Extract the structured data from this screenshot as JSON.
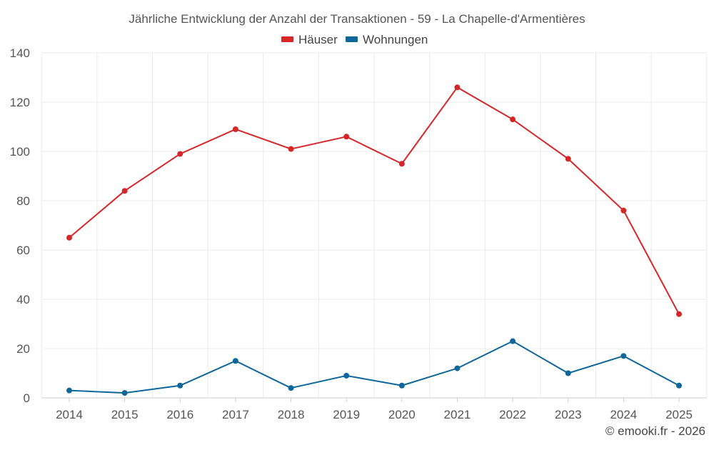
{
  "chart_data": {
    "type": "line",
    "title": "Jährliche Entwicklung der Anzahl der Transaktionen - 59 - La Chapelle-d'Armentières",
    "categories": [
      "2014",
      "2015",
      "2016",
      "2017",
      "2018",
      "2019",
      "2020",
      "2021",
      "2022",
      "2023",
      "2024",
      "2025"
    ],
    "series": [
      {
        "name": "Häuser",
        "color": "#d62728",
        "values": [
          65,
          84,
          99,
          109,
          101,
          106,
          95,
          126,
          113,
          97,
          76,
          34
        ]
      },
      {
        "name": "Wohnungen",
        "color": "#0e6699",
        "values": [
          3,
          2,
          5,
          15,
          4,
          9,
          5,
          12,
          23,
          10,
          17,
          5
        ]
      }
    ],
    "y_ticks": [
      "0",
      "20",
      "40",
      "60",
      "80",
      "100",
      "120",
      "140"
    ],
    "ylim": [
      0,
      140
    ],
    "xlabel": "",
    "ylabel": "",
    "grid": true,
    "legend_position": "top-center"
  },
  "credit": "© emooki.fr - 2026"
}
